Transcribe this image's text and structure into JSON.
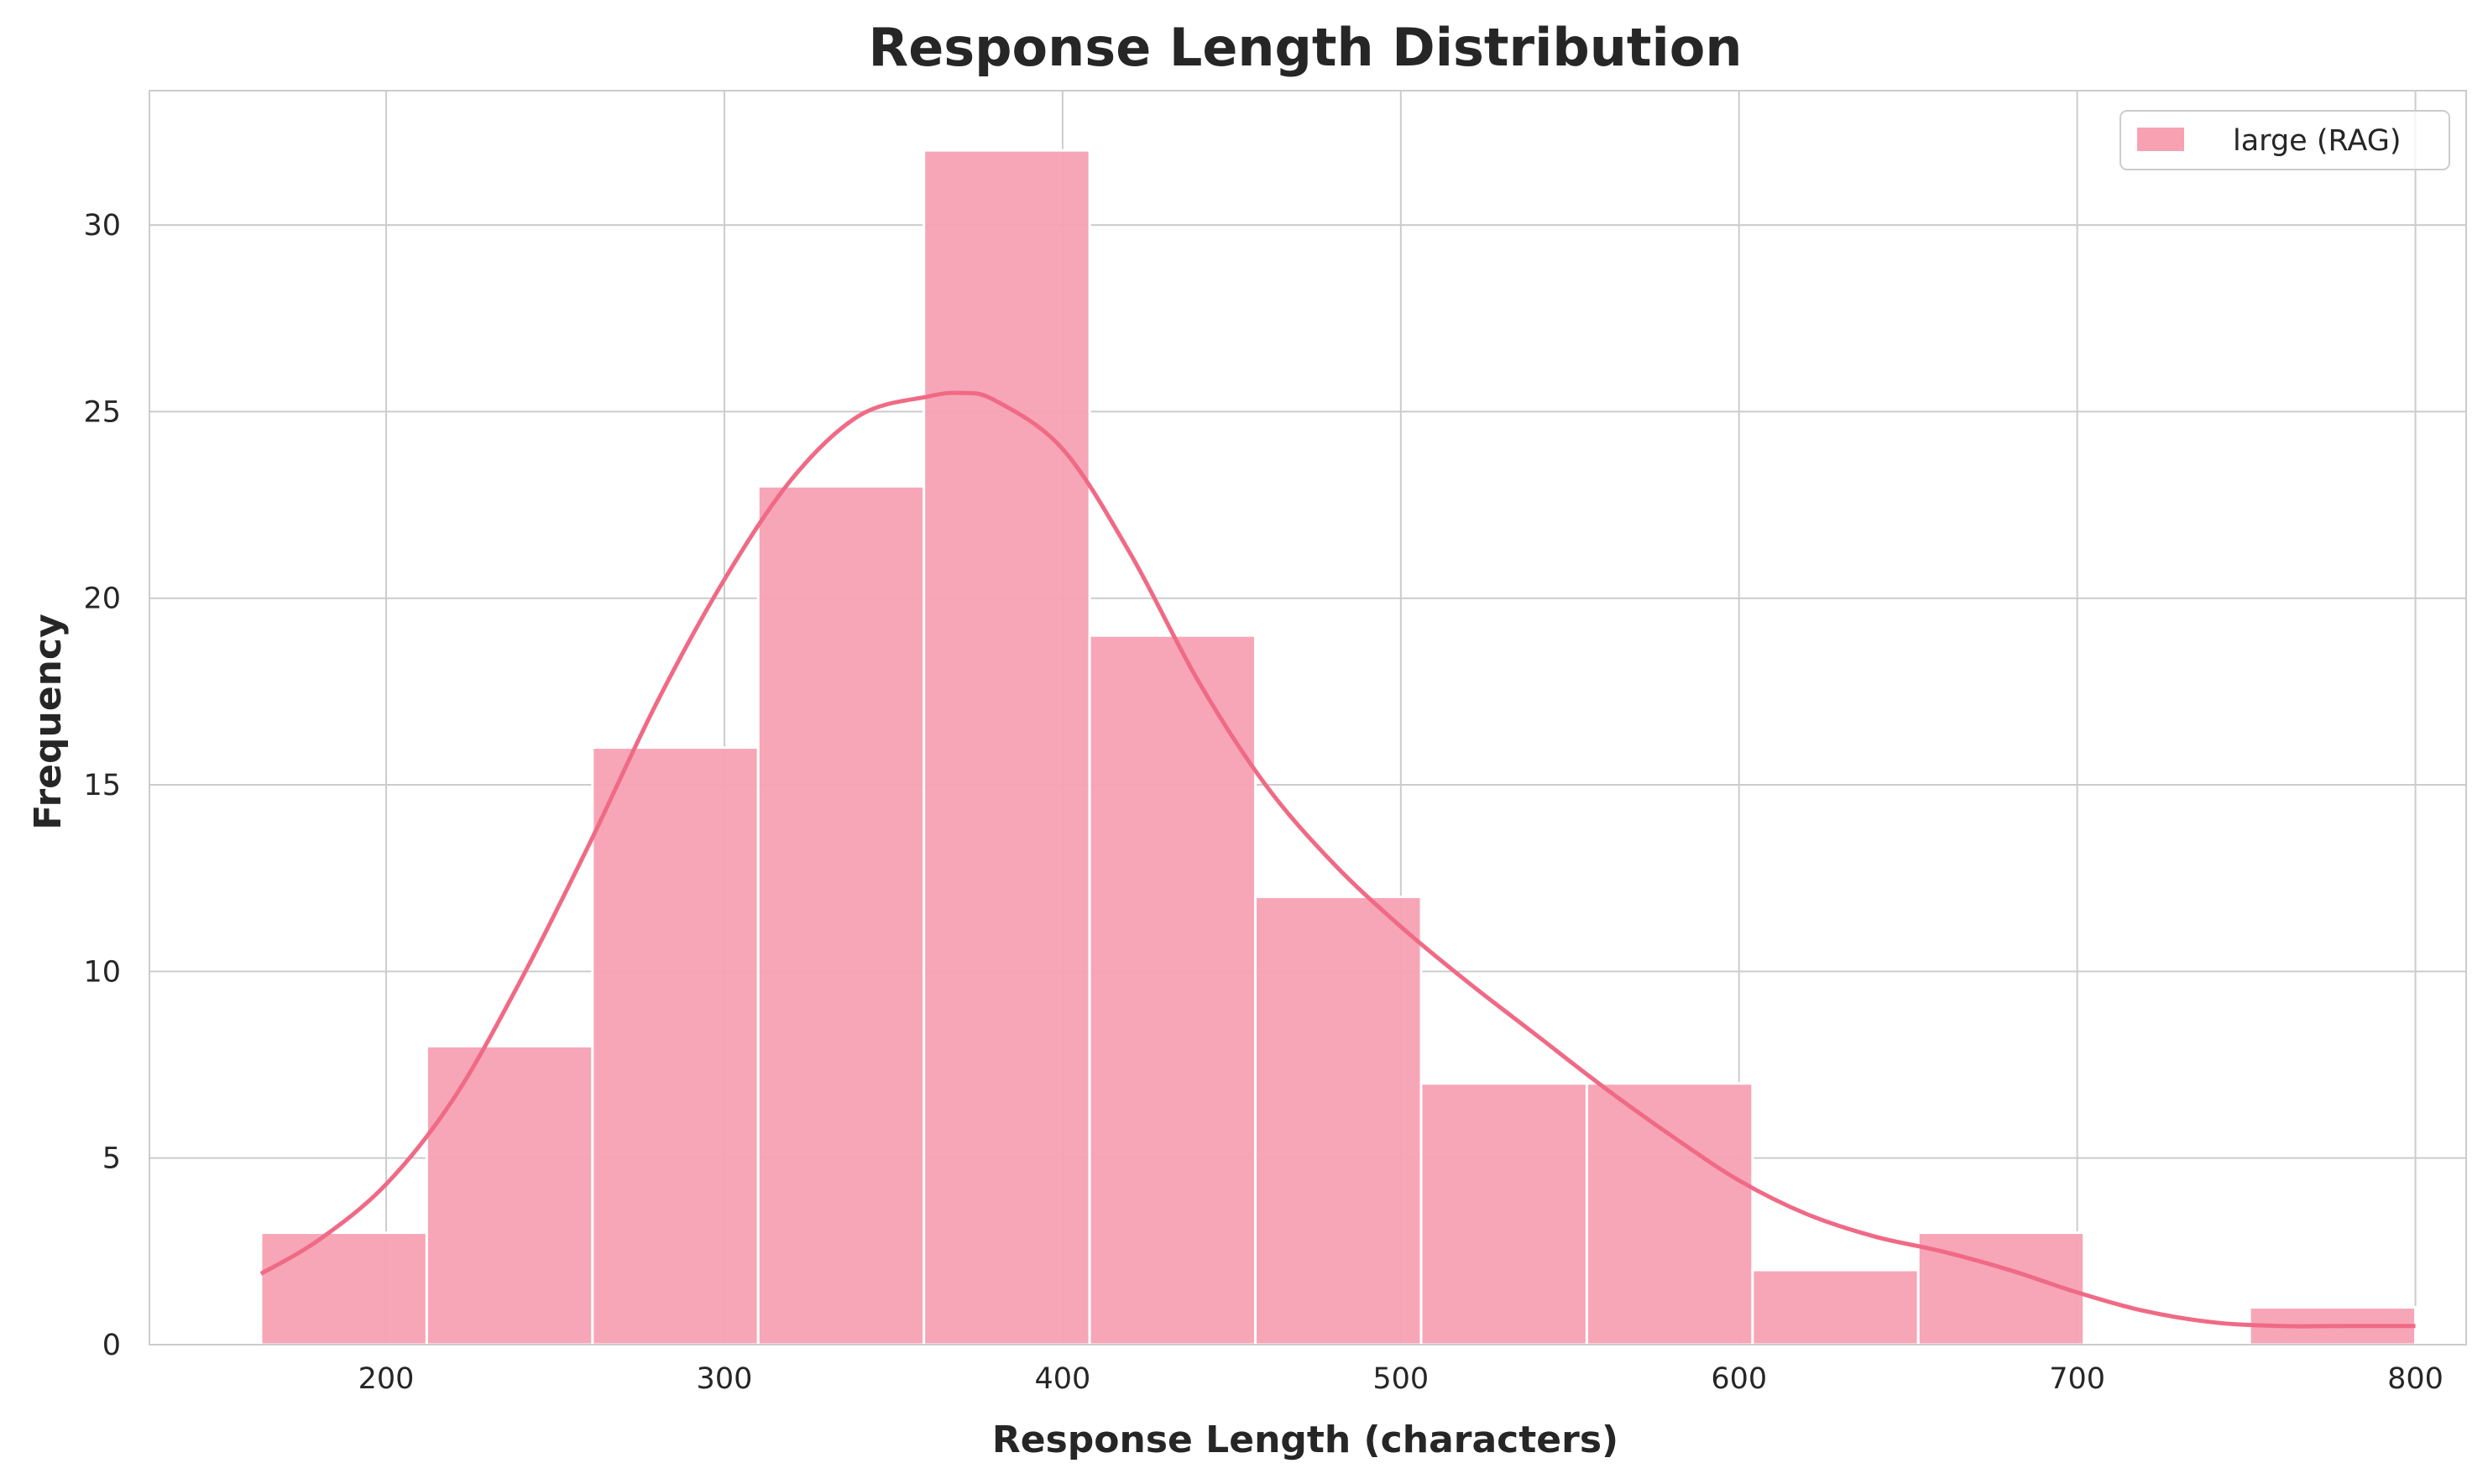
{
  "chart_data": {
    "type": "bar",
    "title": "Response Length Distribution",
    "xlabel": "Response Length (characters)",
    "ylabel": "Frequency",
    "xlim": [
      130,
      815
    ],
    "ylim": [
      0,
      33.6
    ],
    "xticks": [
      200,
      300,
      400,
      500,
      600,
      700,
      800
    ],
    "yticks": [
      0,
      5,
      10,
      15,
      20,
      25,
      30
    ],
    "grid": true,
    "legend_position": "top-right",
    "series": [
      {
        "name": "large (RAG)",
        "color": "#f7a1b3",
        "bins": [
          {
            "x0": 163,
            "x1": 212,
            "count": 3
          },
          {
            "x0": 212,
            "x1": 261,
            "count": 8
          },
          {
            "x0": 261,
            "x1": 310,
            "count": 16
          },
          {
            "x0": 310,
            "x1": 359,
            "count": 23
          },
          {
            "x0": 359,
            "x1": 408,
            "count": 32
          },
          {
            "x0": 408,
            "x1": 457,
            "count": 19
          },
          {
            "x0": 457,
            "x1": 506,
            "count": 12
          },
          {
            "x0": 506,
            "x1": 555,
            "count": 7
          },
          {
            "x0": 555,
            "x1": 604,
            "count": 7
          },
          {
            "x0": 604,
            "x1": 653,
            "count": 2
          },
          {
            "x0": 653,
            "x1": 702,
            "count": 3
          },
          {
            "x0": 702,
            "x1": 751,
            "count": 0
          },
          {
            "x0": 751,
            "x1": 800,
            "count": 1
          }
        ]
      }
    ],
    "kde": {
      "color": "#f06a85",
      "x": [
        163,
        180,
        200,
        220,
        240,
        260,
        280,
        300,
        320,
        340,
        360,
        370,
        380,
        400,
        420,
        440,
        460,
        480,
        500,
        520,
        540,
        560,
        580,
        600,
        620,
        640,
        660,
        680,
        700,
        720,
        740,
        760,
        780,
        800
      ],
      "y": [
        1.9,
        2.8,
        4.3,
        6.6,
        9.8,
        13.4,
        17.2,
        20.5,
        23.2,
        24.9,
        25.4,
        25.5,
        25.3,
        24.0,
        21.2,
        17.8,
        15.0,
        12.9,
        11.2,
        9.7,
        8.3,
        6.9,
        5.6,
        4.4,
        3.5,
        2.9,
        2.5,
        2.0,
        1.4,
        0.9,
        0.6,
        0.5,
        0.5,
        0.5
      ]
    }
  }
}
